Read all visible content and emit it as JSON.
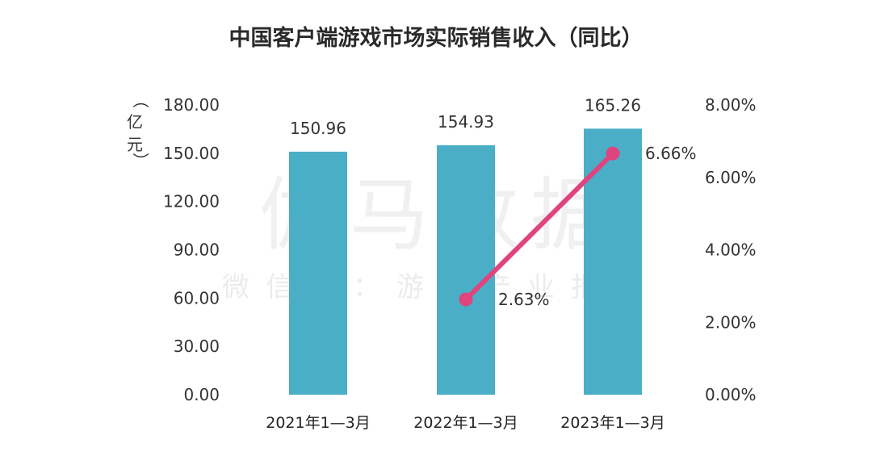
{
  "chart_data": {
    "type": "bar+line",
    "title": "中国客户端游戏市场实际销售收入（同比）",
    "ylabel": "（亿元）",
    "categories": [
      "2021年1—3月",
      "2022年1—3月",
      "2023年1—3月"
    ],
    "series": [
      {
        "type": "bar",
        "axis": "left",
        "values": [
          150.96,
          154.93,
          165.26
        ],
        "labels": [
          "150.96",
          "154.93",
          "165.26"
        ],
        "color": "#4aaec7"
      },
      {
        "type": "line",
        "axis": "right",
        "values": [
          null,
          2.63,
          6.66
        ],
        "labels": [
          "",
          "2.63%",
          "6.66%"
        ],
        "color": "#e0447e"
      }
    ],
    "ylim_left": [
      0,
      180
    ],
    "yticks_left": [
      "0.00",
      "30.00",
      "60.00",
      "90.00",
      "120.00",
      "150.00",
      "180.00"
    ],
    "ylim_right": [
      0,
      8
    ],
    "yticks_right": [
      "0.00%",
      "2.00%",
      "4.00%",
      "6.00%",
      "8.00%"
    ],
    "grid": false,
    "watermark": {
      "main": "伽马数据",
      "sub": "微信号：游戏产业报告"
    }
  }
}
